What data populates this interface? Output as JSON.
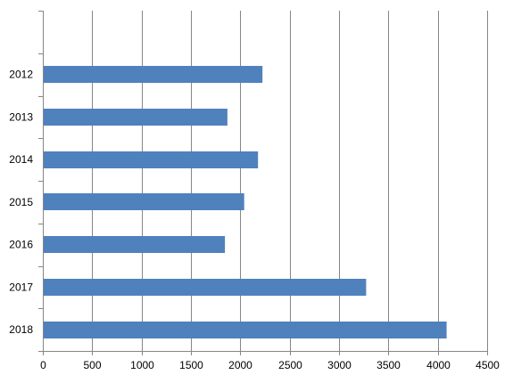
{
  "chart_data": {
    "type": "bar",
    "orientation": "horizontal",
    "categories": [
      "2012",
      "2013",
      "2014",
      "2015",
      "2016",
      "2017",
      "2018"
    ],
    "values": [
      2220,
      1865,
      2175,
      2035,
      1840,
      3270,
      4085
    ],
    "xlim": [
      0,
      4500
    ],
    "x_ticks": [
      0,
      500,
      1000,
      1500,
      2000,
      2500,
      3000,
      3500,
      4000,
      4500
    ],
    "x_tick_labels": [
      "0",
      "500",
      "1000",
      "1500",
      "2000",
      "2500",
      "3000",
      "3500",
      "4000",
      "4500"
    ],
    "category_order": "top-to-bottom",
    "empty_slot_at_top": true,
    "grid": {
      "vertical": true,
      "horizontal": false
    },
    "legend": "none",
    "colors": {
      "bar": "#4f81bd",
      "grid": "#868686",
      "axis": "#868686",
      "text": "#000000"
    }
  }
}
